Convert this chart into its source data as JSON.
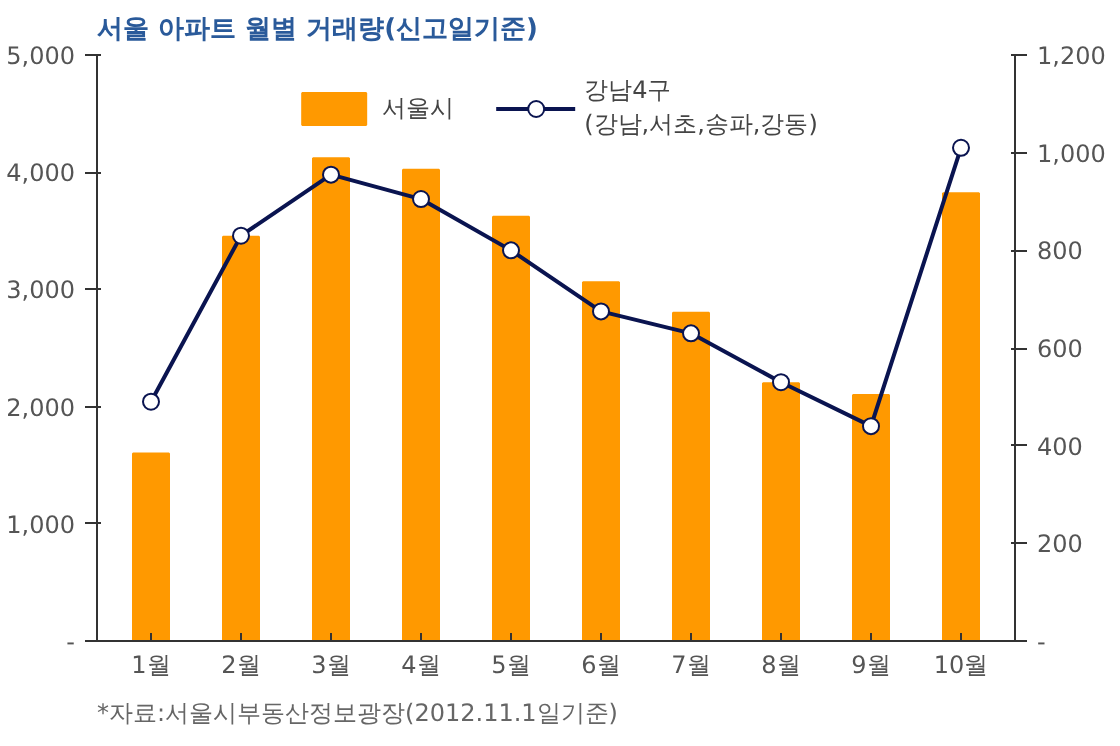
{
  "chart_data": {
    "type": "bar",
    "title": "서울 아파트 월별 거래량(신고일기준)",
    "categories": [
      "1월",
      "2월",
      "3월",
      "4월",
      "5월",
      "6월",
      "7월",
      "8월",
      "9월",
      "10월"
    ],
    "series": [
      {
        "name": "서울시",
        "color": "#ff9900",
        "values": [
          1600,
          3450,
          4120,
          4020,
          3620,
          3060,
          2800,
          2200,
          2100,
          3820
        ]
      },
      {
        "name": "강남4구\n(강남,서초,송파,강동)",
        "type": "line",
        "axis": "y2",
        "color": "#0a1450",
        "marker": "circle",
        "values": [
          490,
          830,
          955,
          905,
          800,
          675,
          630,
          530,
          440,
          1010
        ]
      }
    ],
    "ylim": [
      0,
      5000
    ],
    "yticks": [
      {
        "value": 0,
        "label": "-"
      },
      {
        "value": 1000,
        "label": "1,000"
      },
      {
        "value": 2000,
        "label": "2,000"
      },
      {
        "value": 3000,
        "label": "3,000"
      },
      {
        "value": 4000,
        "label": "4,000"
      },
      {
        "value": 5000,
        "label": "5,000"
      }
    ],
    "y2lim": [
      0,
      1200
    ],
    "y2ticks": [
      {
        "value": 0,
        "label": "-"
      },
      200,
      400,
      600,
      800,
      {
        "value": 1000,
        "label": "1,000"
      },
      {
        "value": 1200,
        "label": "1,200"
      }
    ],
    "grid": false,
    "legend": "top",
    "annotations": [
      "*자료:서울시부동산정보광장(2012.11.1일기준)"
    ]
  }
}
